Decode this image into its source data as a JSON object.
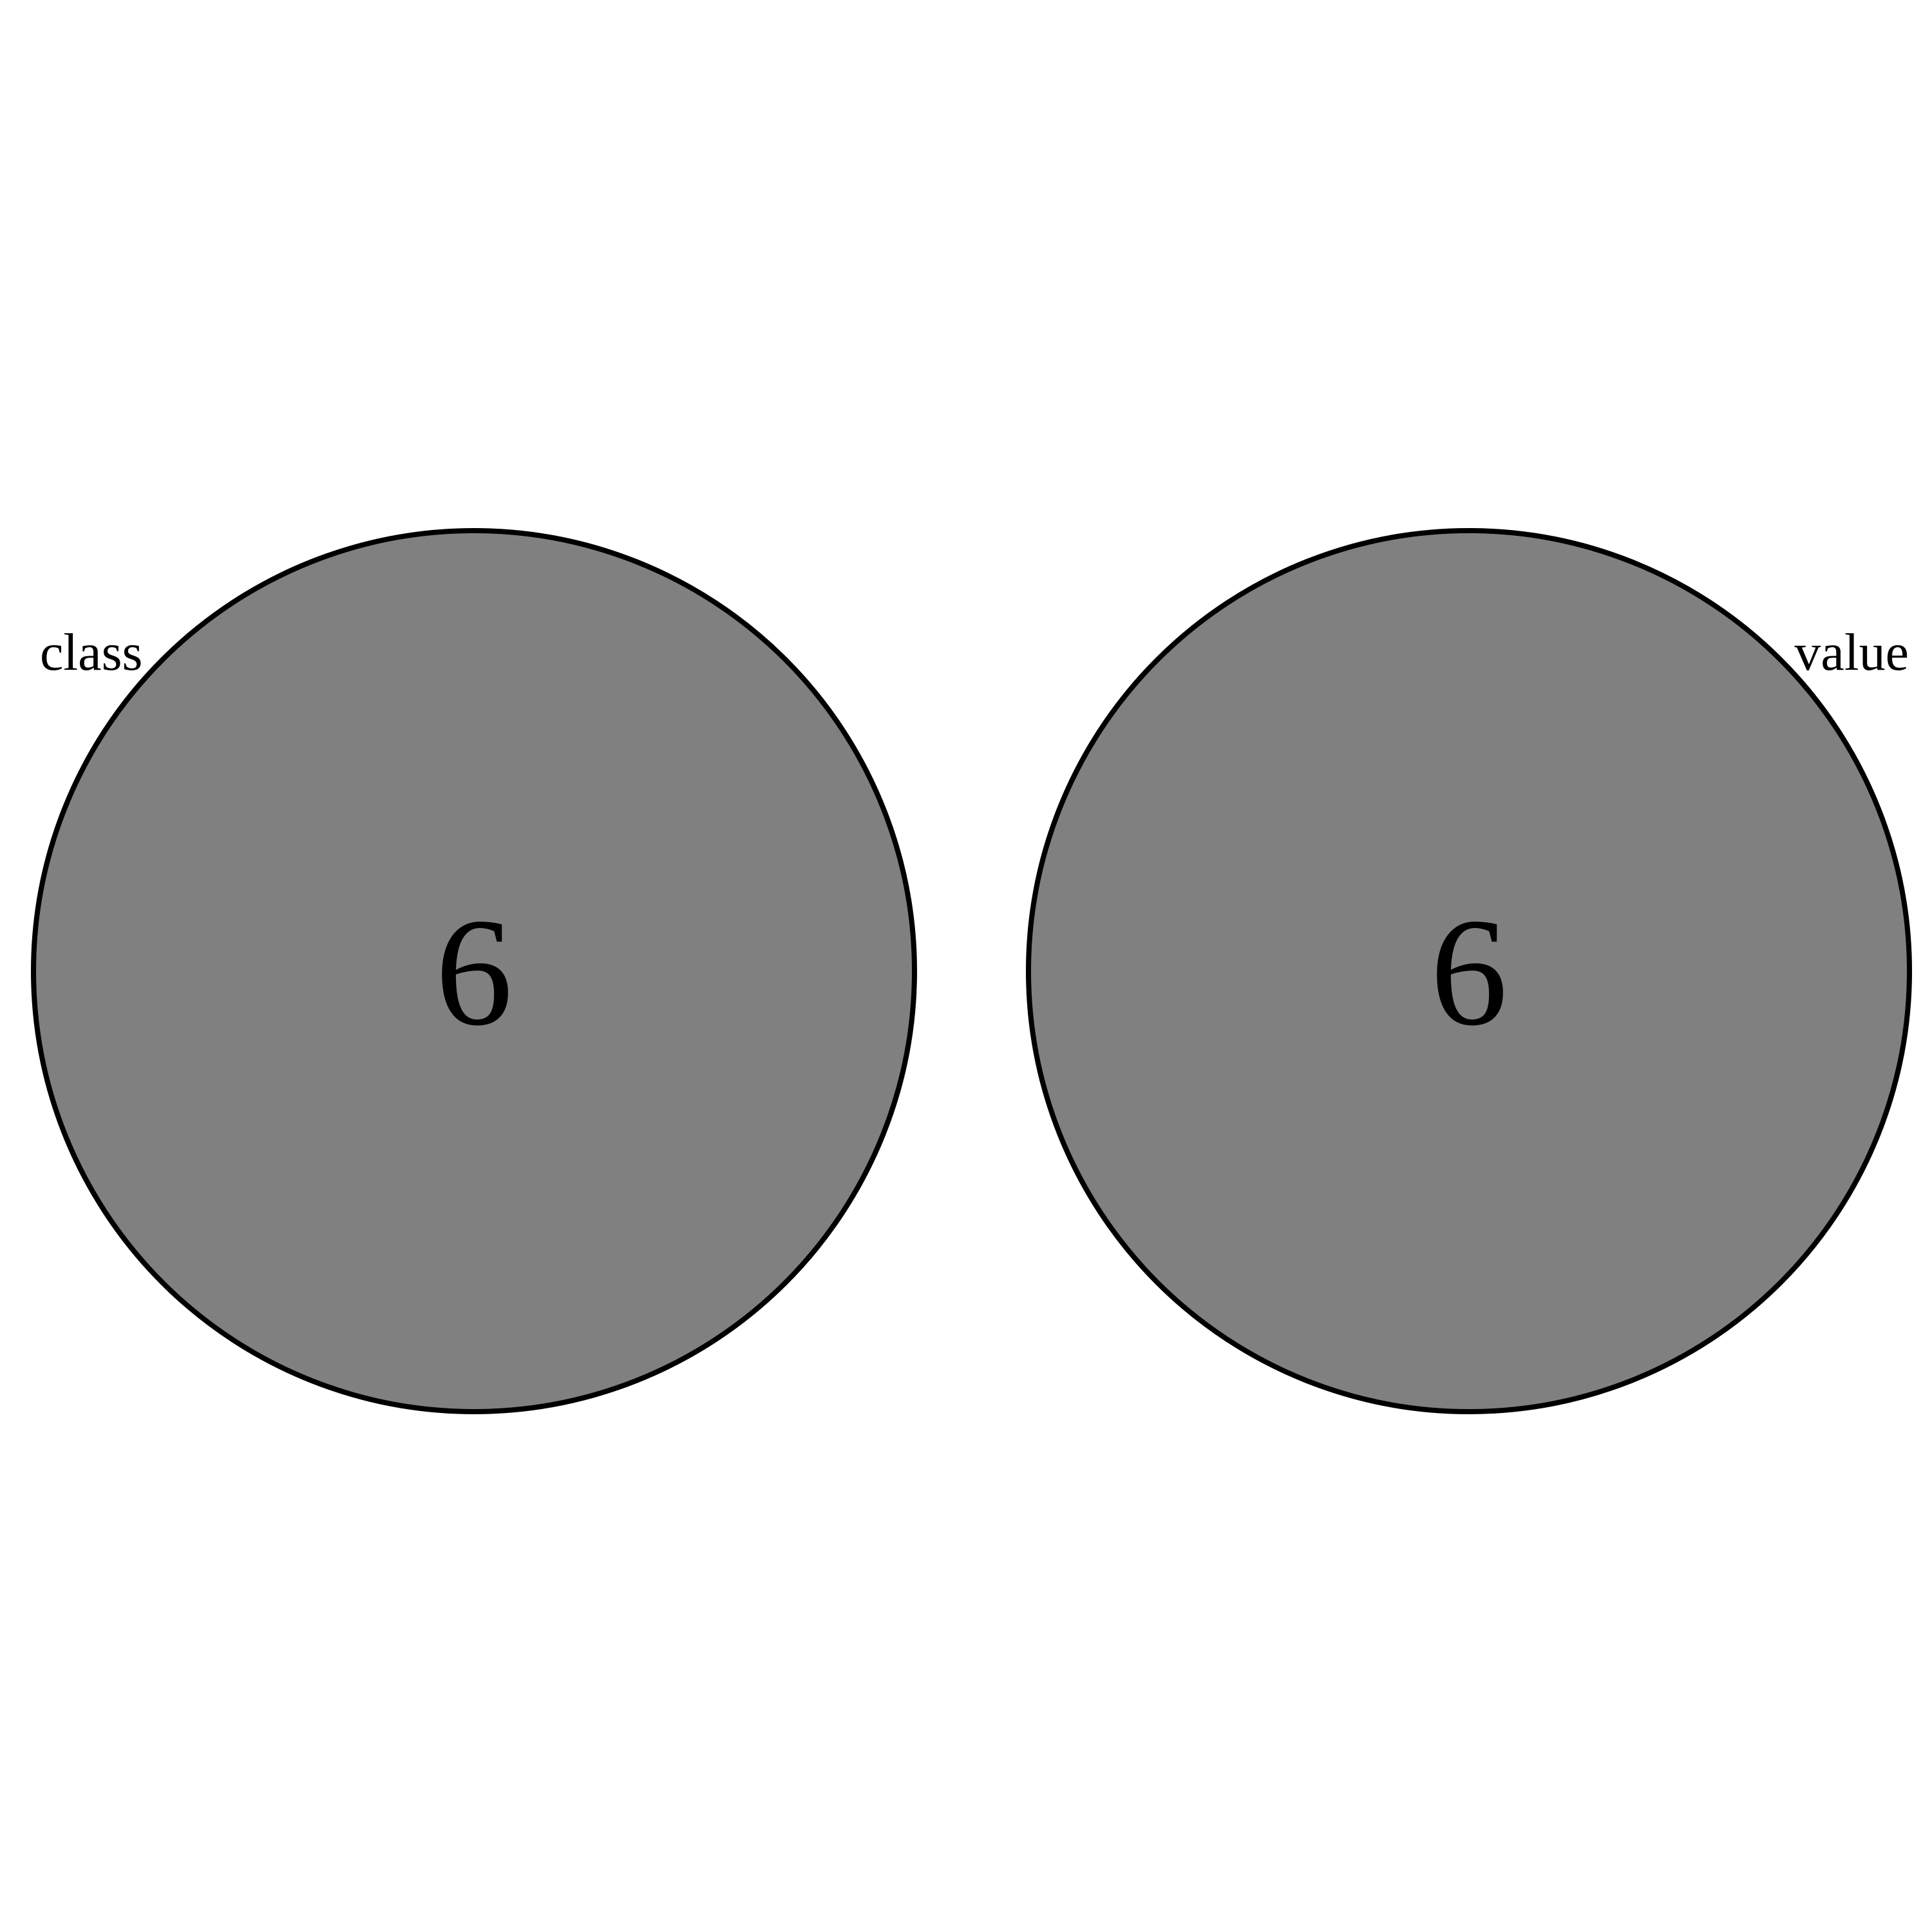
{
  "diagram": {
    "type": "venn",
    "colors": {
      "fill": "#808080",
      "stroke": "#000000",
      "background": "#ffffff"
    },
    "sets": [
      {
        "label": "class",
        "count": "6"
      },
      {
        "label": "value",
        "count": "6"
      }
    ],
    "overlap_count": null
  }
}
